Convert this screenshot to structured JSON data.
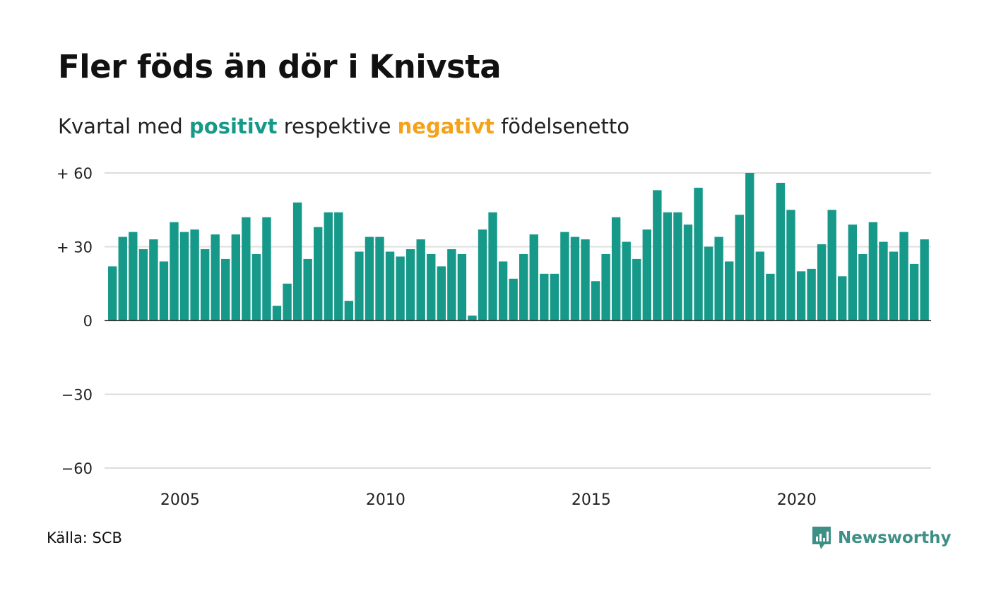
{
  "title": "Fler föds än dör i Knivsta",
  "subtitle": {
    "before": "Kvartal med ",
    "positive_word": "positivt",
    "middle": " respektive ",
    "negative_word": "negativt",
    "after": " födelsenetto"
  },
  "source": "Källa: SCB",
  "brand": "Newsworthy",
  "colors": {
    "positive": "#17998a",
    "negative": "#f4a21b",
    "grid": "#dddddd",
    "axis": "#111111"
  },
  "chart_data": {
    "type": "bar",
    "ylim": [
      -60,
      60
    ],
    "y_ticks": [
      60,
      30,
      0,
      -30,
      -60
    ],
    "y_tick_labels": [
      "+ 60",
      "+ 30",
      "0",
      "−30",
      "−60"
    ],
    "x_ticks": [
      2005,
      2010,
      2015,
      2020
    ],
    "x_tick_labels": [
      "2005",
      "2010",
      "2015",
      "2020"
    ],
    "start_year": 2003,
    "start_quarter": 2,
    "grid": true,
    "values": [
      22,
      34,
      36,
      29,
      33,
      24,
      40,
      36,
      37,
      29,
      35,
      25,
      35,
      42,
      27,
      42,
      6,
      15,
      48,
      25,
      38,
      44,
      44,
      8,
      28,
      34,
      34,
      28,
      26,
      29,
      33,
      27,
      22,
      29,
      27,
      2,
      37,
      44,
      24,
      17,
      27,
      35,
      19,
      19,
      36,
      34,
      33,
      16,
      27,
      42,
      32,
      25,
      37,
      53,
      44,
      44,
      39,
      54,
      30,
      34,
      24,
      43,
      60,
      28,
      19,
      56,
      45,
      20,
      21,
      31,
      45,
      18,
      39,
      27,
      40,
      32,
      28,
      36,
      23,
      33
    ]
  }
}
